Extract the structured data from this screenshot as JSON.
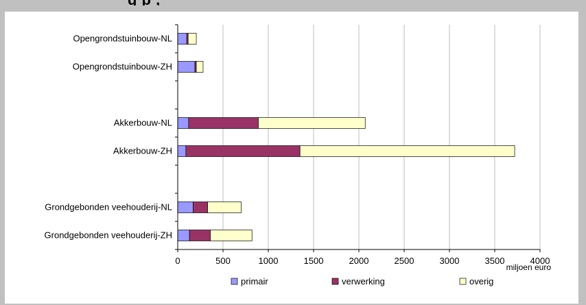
{
  "header": {
    "title_fragment": "g                          p      ,"
  },
  "chart_data": {
    "type": "bar",
    "orientation": "horizontal",
    "stacked": true,
    "categories": [
      "Opengrondstuinbouw-NL",
      "Opengrondstuinbouw-ZH",
      "",
      "Akkerbouw-NL",
      "Akkerbouw-ZH",
      "",
      "Grondgebonden veehouderij-NL",
      "Grondgebonden veehouderij-ZH"
    ],
    "series": [
      {
        "name": "primair",
        "color": "#9999ff",
        "values": [
          100,
          190,
          null,
          120,
          90,
          null,
          170,
          130
        ]
      },
      {
        "name": "verwerking",
        "color": "#993366",
        "values": [
          15,
          15,
          null,
          770,
          1260,
          null,
          160,
          230
        ]
      },
      {
        "name": "overig",
        "color": "#ffffcc",
        "values": [
          90,
          75,
          null,
          1180,
          2370,
          null,
          370,
          460
        ]
      }
    ],
    "xlim": [
      0,
      4000
    ],
    "xticks": [
      "0",
      "500",
      "1000",
      "1500",
      "2000",
      "2500",
      "3000",
      "3500",
      "4000"
    ],
    "xunit": "miljoen euro",
    "grid": "vertical",
    "legend_position": "bottom"
  }
}
